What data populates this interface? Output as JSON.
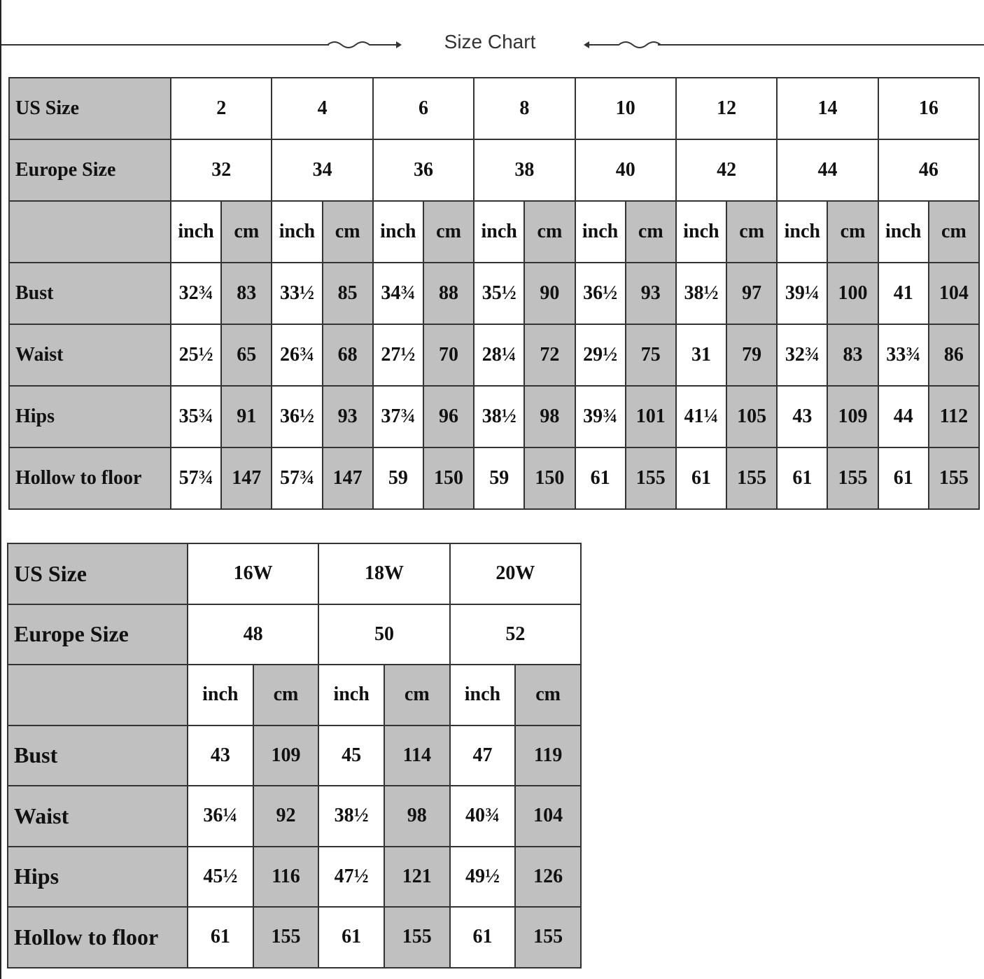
{
  "title": "Size Chart",
  "colors": {
    "shade": "#c0c0c0",
    "border": "#333333"
  },
  "tables": [
    {
      "us_label": "US Size",
      "eu_label": "Europe Size",
      "us_sizes": [
        "2",
        "4",
        "6",
        "8",
        "10",
        "12",
        "14",
        "16"
      ],
      "eu_sizes": [
        "32",
        "34",
        "36",
        "38",
        "40",
        "42",
        "44",
        "46"
      ],
      "unit_inch": "inch",
      "unit_cm": "cm",
      "rows": [
        {
          "label": "Bust",
          "values": [
            "32¾",
            "83",
            "33½",
            "85",
            "34¾",
            "88",
            "35½",
            "90",
            "36½",
            "93",
            "38½",
            "97",
            "39¼",
            "100",
            "41",
            "104"
          ]
        },
        {
          "label": "Waist",
          "values": [
            "25½",
            "65",
            "26¾",
            "68",
            "27½",
            "70",
            "28¼",
            "72",
            "29½",
            "75",
            "31",
            "79",
            "32¾",
            "83",
            "33¾",
            "86"
          ]
        },
        {
          "label": "Hips",
          "values": [
            "35¾",
            "91",
            "36½",
            "93",
            "37¾",
            "96",
            "38½",
            "98",
            "39¾",
            "101",
            "41¼",
            "105",
            "43",
            "109",
            "44",
            "112"
          ]
        },
        {
          "label": "Hollow to floor",
          "values": [
            "57¾",
            "147",
            "57¾",
            "147",
            "59",
            "150",
            "59",
            "150",
            "61",
            "155",
            "61",
            "155",
            "61",
            "155",
            "61",
            "155"
          ]
        }
      ]
    },
    {
      "us_label": "US Size",
      "eu_label": "Europe Size",
      "us_sizes": [
        "16W",
        "18W",
        "20W"
      ],
      "eu_sizes": [
        "48",
        "50",
        "52"
      ],
      "unit_inch": "inch",
      "unit_cm": "cm",
      "rows": [
        {
          "label": "Bust",
          "values": [
            "43",
            "109",
            "45",
            "114",
            "47",
            "119"
          ]
        },
        {
          "label": "Waist",
          "values": [
            "36¼",
            "92",
            "38½",
            "98",
            "40¾",
            "104"
          ]
        },
        {
          "label": "Hips",
          "values": [
            "45½",
            "116",
            "47½",
            "121",
            "49½",
            "126"
          ]
        },
        {
          "label": "Hollow to floor",
          "values": [
            "61",
            "155",
            "61",
            "155",
            "61",
            "155"
          ]
        }
      ]
    }
  ]
}
